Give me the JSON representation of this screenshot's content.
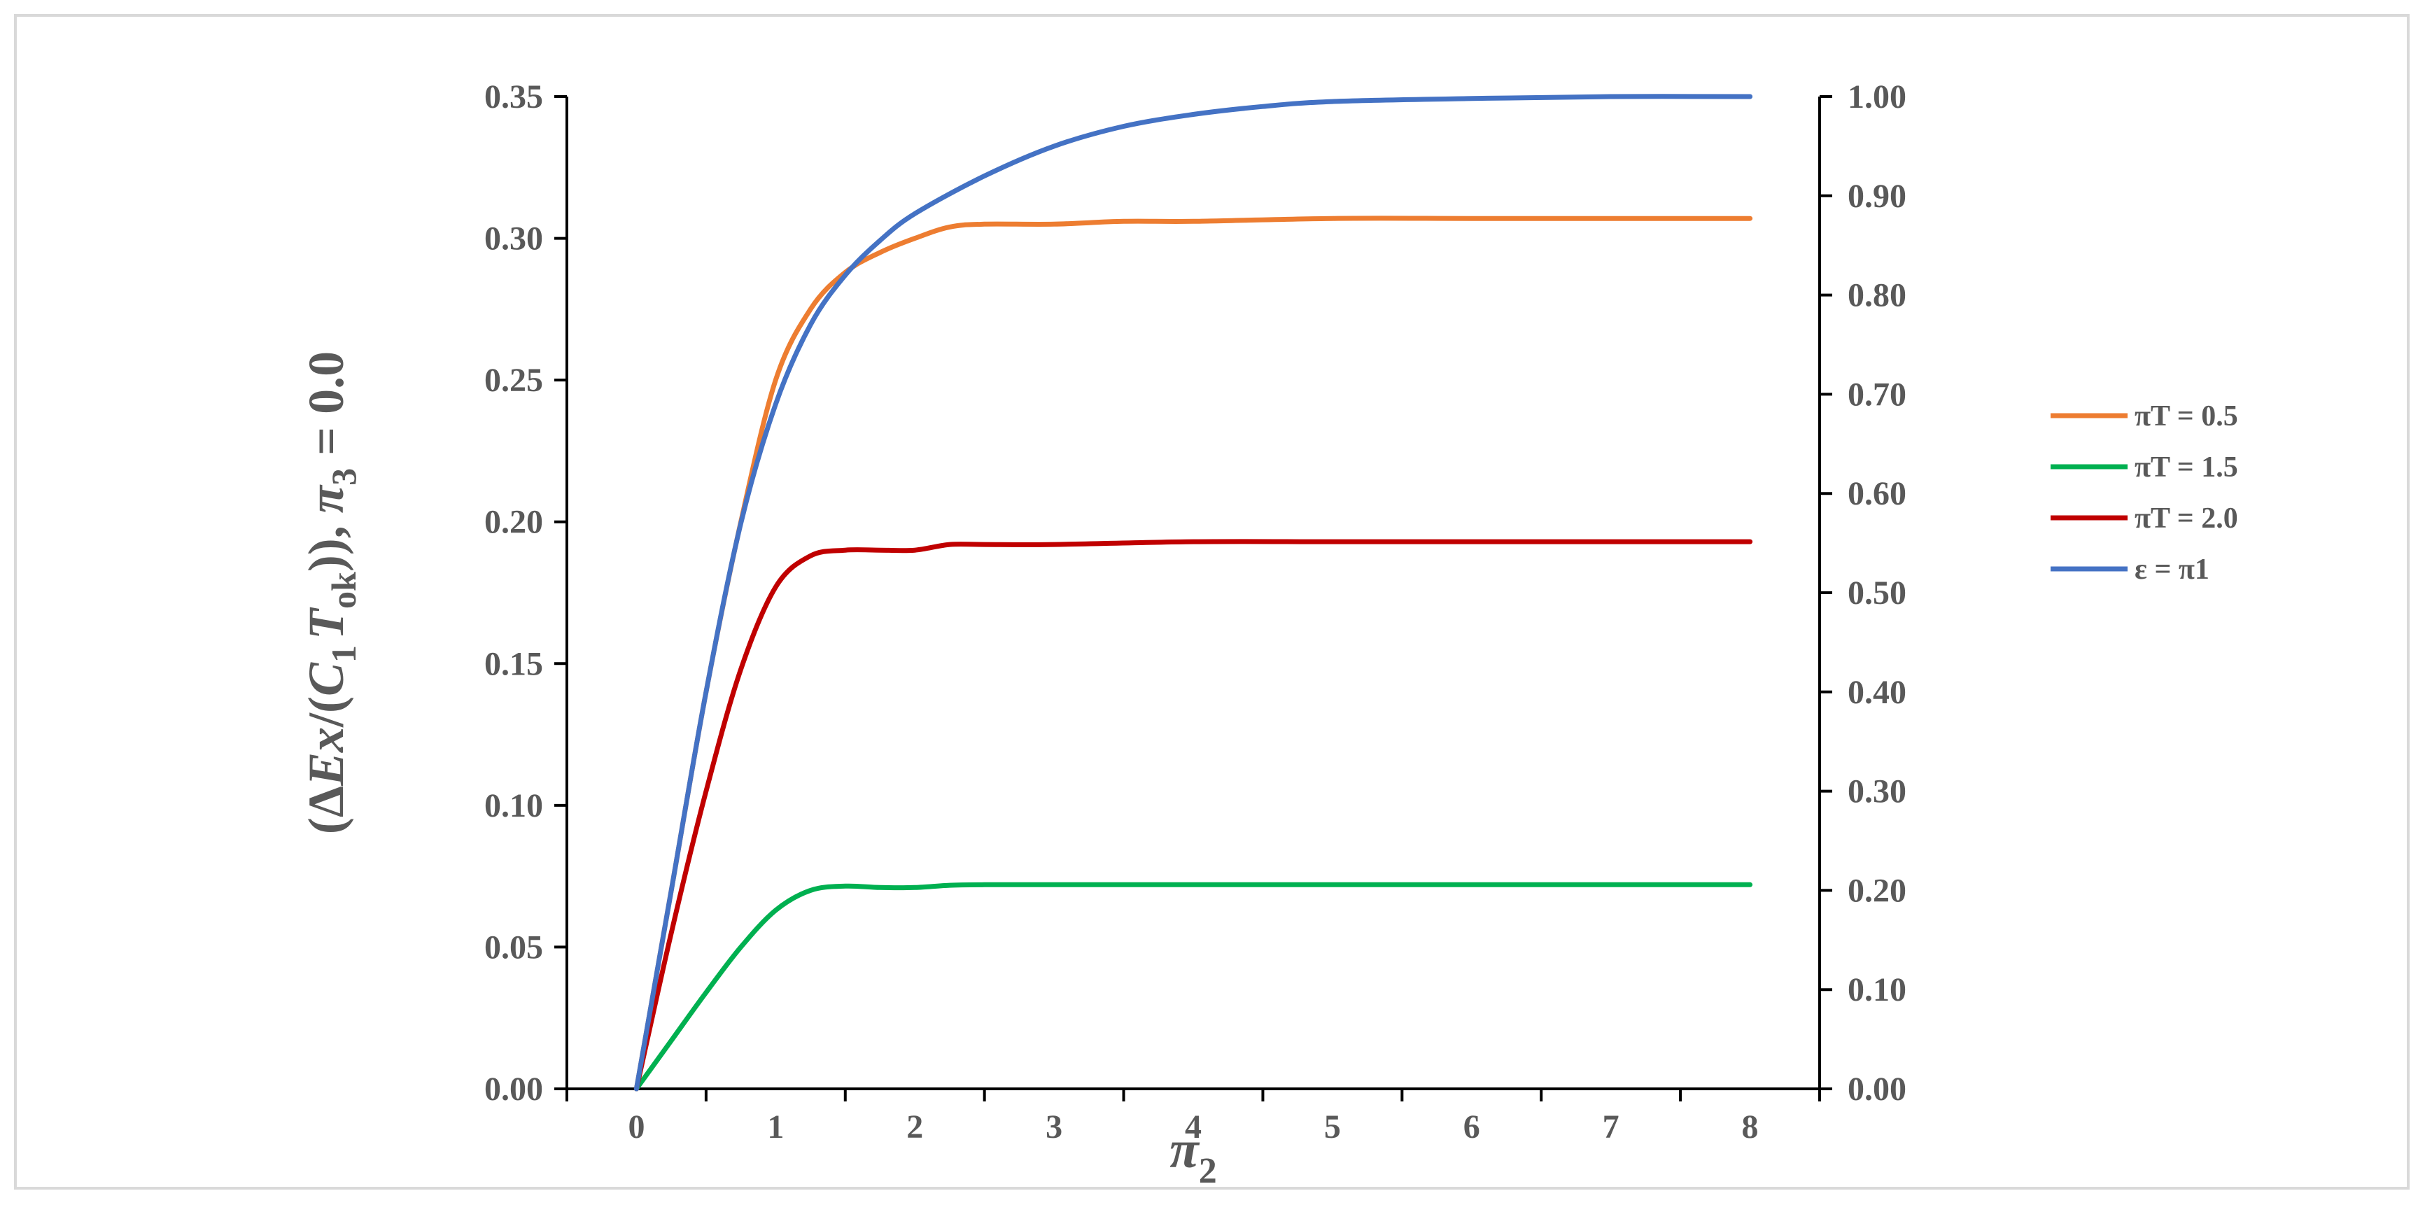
{
  "chart_data": {
    "type": "line",
    "xlabel": "π",
    "xlabel_sub": "2",
    "ylabel": {
      "open": "(Δ",
      "e": "E",
      "x": "x",
      "mid": "/(",
      "c": "C",
      "c_sub": "1",
      "t": "T",
      "t_sub": "ok",
      "close": ")), ",
      "pi": "π",
      "pi_sub": "3",
      "tail": " = 0.0"
    },
    "xlim": [
      -0.5,
      8.5
    ],
    "ylim": [
      0,
      0.35
    ],
    "y2lim": [
      0,
      1.0
    ],
    "x_ticks": [
      "0",
      "1",
      "2",
      "3",
      "4",
      "5",
      "6",
      "7",
      "8"
    ],
    "x_tick_values": [
      0,
      1,
      2,
      3,
      4,
      5,
      6,
      7,
      8
    ],
    "y_ticks": [
      "0.00",
      "0.05",
      "0.10",
      "0.15",
      "0.20",
      "0.25",
      "0.30",
      "0.35"
    ],
    "y_tick_values": [
      0,
      0.05,
      0.1,
      0.15,
      0.2,
      0.25,
      0.3,
      0.35
    ],
    "y2_ticks": [
      "0.00",
      "0.10",
      "0.20",
      "0.30",
      "0.40",
      "0.50",
      "0.60",
      "0.70",
      "0.80",
      "0.90",
      "1.00"
    ],
    "y2_tick_values": [
      0,
      0.1,
      0.2,
      0.3,
      0.4,
      0.5,
      0.6,
      0.7,
      0.8,
      0.9,
      1.0
    ],
    "grid": false,
    "legend_position": "right",
    "series": [
      {
        "name": "πT = 0.5",
        "color": "#ED7D31",
        "axis": "left",
        "points": [
          [
            0,
            0
          ],
          [
            0.25,
            0.07
          ],
          [
            0.5,
            0.14
          ],
          [
            0.75,
            0.2
          ],
          [
            1,
            0.25
          ],
          [
            1.25,
            0.275
          ],
          [
            1.5,
            0.288
          ],
          [
            1.75,
            0.295
          ],
          [
            2,
            0.3
          ],
          [
            2.25,
            0.304
          ],
          [
            2.5,
            0.305
          ],
          [
            3,
            0.305
          ],
          [
            3.5,
            0.306
          ],
          [
            4,
            0.306
          ],
          [
            5,
            0.307
          ],
          [
            6,
            0.307
          ],
          [
            7,
            0.307
          ],
          [
            8,
            0.307
          ]
        ]
      },
      {
        "name": "πT = 1.5",
        "color": "#00B050",
        "axis": "left",
        "points": [
          [
            0,
            0
          ],
          [
            0.25,
            0.017
          ],
          [
            0.5,
            0.034
          ],
          [
            0.75,
            0.05
          ],
          [
            1,
            0.063
          ],
          [
            1.25,
            0.07
          ],
          [
            1.5,
            0.0715
          ],
          [
            1.75,
            0.071
          ],
          [
            2,
            0.071
          ],
          [
            2.25,
            0.0718
          ],
          [
            2.5,
            0.072
          ],
          [
            3,
            0.072
          ],
          [
            4,
            0.072
          ],
          [
            5,
            0.072
          ],
          [
            6,
            0.072
          ],
          [
            7,
            0.072
          ],
          [
            8,
            0.072
          ]
        ]
      },
      {
        "name": "πT = 2.0",
        "color": "#C00000",
        "axis": "left",
        "points": [
          [
            0,
            0
          ],
          [
            0.25,
            0.055
          ],
          [
            0.5,
            0.105
          ],
          [
            0.75,
            0.148
          ],
          [
            1,
            0.177
          ],
          [
            1.25,
            0.188
          ],
          [
            1.5,
            0.19
          ],
          [
            1.75,
            0.19
          ],
          [
            2,
            0.19
          ],
          [
            2.25,
            0.192
          ],
          [
            2.5,
            0.192
          ],
          [
            3,
            0.192
          ],
          [
            4,
            0.193
          ],
          [
            5,
            0.193
          ],
          [
            6,
            0.193
          ],
          [
            7,
            0.193
          ],
          [
            8,
            0.193
          ]
        ]
      },
      {
        "name": "ε = π1",
        "color": "#4472C4",
        "axis": "right",
        "points": [
          [
            0,
            0
          ],
          [
            0.25,
            0.2
          ],
          [
            0.5,
            0.4
          ],
          [
            0.75,
            0.57
          ],
          [
            1,
            0.69
          ],
          [
            1.25,
            0.77
          ],
          [
            1.5,
            0.82
          ],
          [
            1.75,
            0.855
          ],
          [
            2,
            0.882
          ],
          [
            2.5,
            0.92
          ],
          [
            3,
            0.95
          ],
          [
            3.5,
            0.97
          ],
          [
            4,
            0.982
          ],
          [
            4.5,
            0.99
          ],
          [
            5,
            0.995
          ],
          [
            6,
            0.998
          ],
          [
            7,
            1.0
          ],
          [
            8,
            1.0
          ]
        ]
      }
    ]
  }
}
